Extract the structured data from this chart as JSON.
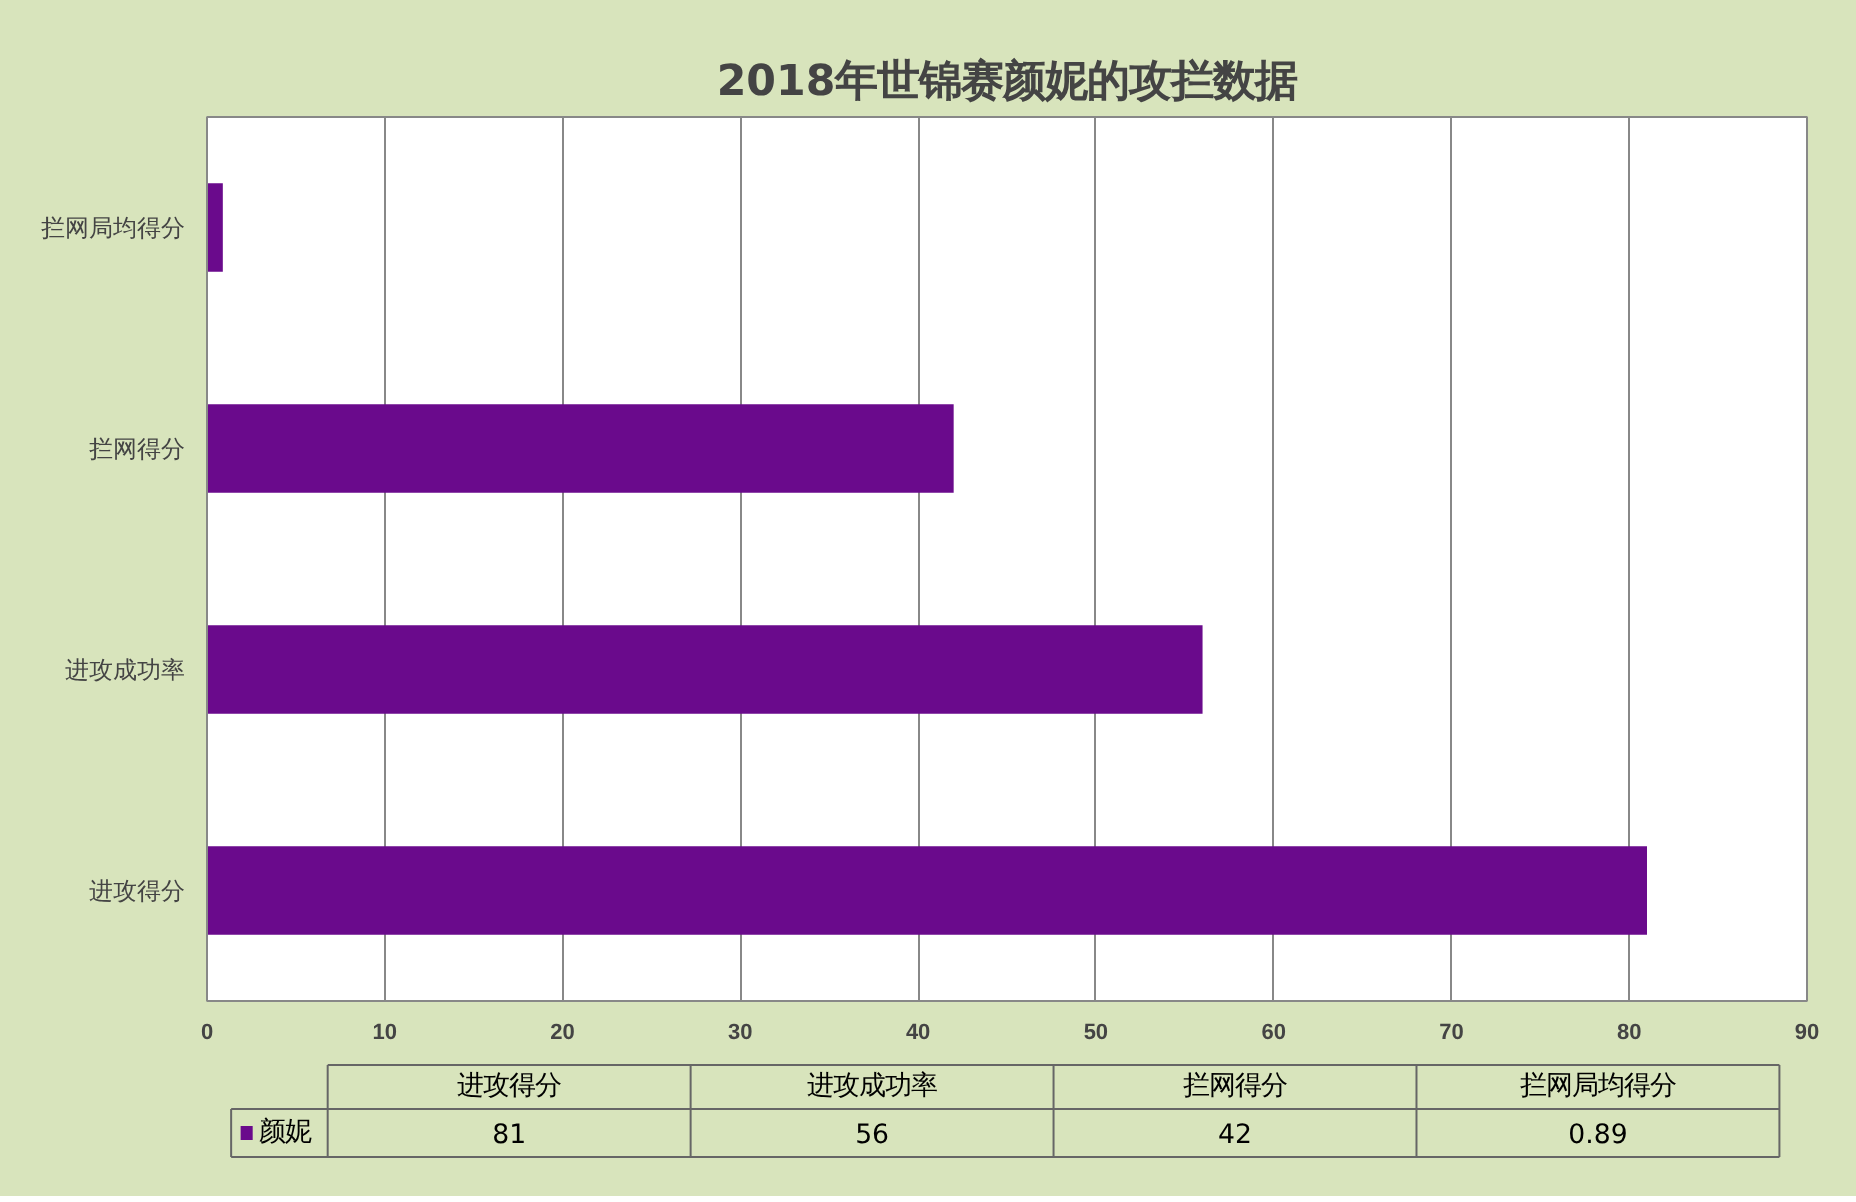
{
  "chart_data": {
    "type": "bar",
    "orientation": "horizontal",
    "title": "2018年世锦赛颜妮的攻拦数据",
    "categories": [
      "拦网局均得分",
      "拦网得分",
      "进攻成功率",
      "进攻得分"
    ],
    "series": [
      {
        "name": "颜妮",
        "color": "#6a0a8c",
        "values": [
          0.89,
          42,
          56,
          81
        ]
      }
    ],
    "annotations": [
      "81",
      "56",
      "42",
      "0.89"
    ],
    "xlim": [
      0,
      90
    ],
    "xticks": [
      0,
      10,
      20,
      30,
      40,
      50,
      60,
      70,
      80,
      90
    ],
    "grid": "x",
    "legend": "bottom"
  }
}
